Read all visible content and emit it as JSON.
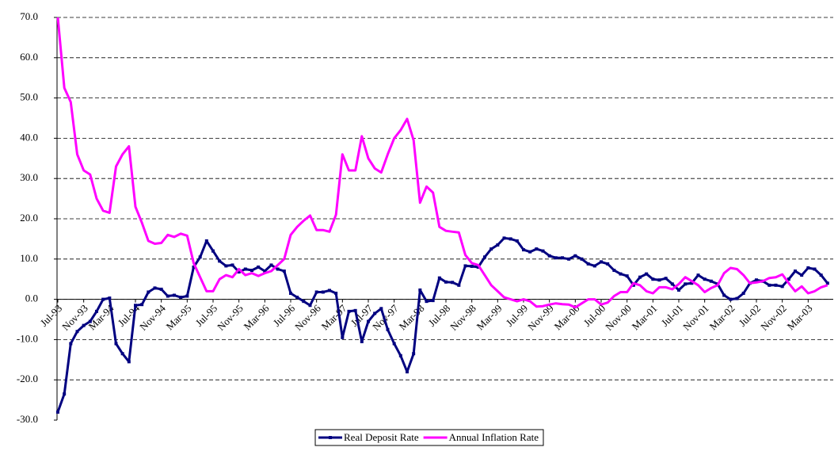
{
  "chart_data": {
    "type": "line",
    "categories": [
      "Jul-93",
      null,
      null,
      null,
      "Nov-93",
      null,
      null,
      null,
      "Mar-94",
      null,
      null,
      null,
      "Jul-94",
      null,
      null,
      null,
      "Nov-94",
      null,
      null,
      null,
      "Mar-95",
      null,
      null,
      null,
      "Jul-95",
      null,
      null,
      null,
      "Nov-95",
      null,
      null,
      null,
      "Mar-96",
      null,
      null,
      null,
      "Jul-96",
      null,
      null,
      null,
      "Nov-96",
      null,
      null,
      null,
      "Mar-97",
      null,
      null,
      null,
      "Jul-97",
      null,
      null,
      null,
      "Nov-97",
      null,
      null,
      null,
      "Mar-98",
      null,
      null,
      null,
      "Jul-98",
      null,
      null,
      null,
      "Nov-98",
      null,
      null,
      null,
      "Mar-99",
      null,
      null,
      null,
      "Jul-99",
      null,
      null,
      null,
      "Nov-99",
      null,
      null,
      null,
      "Mar-00",
      null,
      null,
      null,
      "Jul-00",
      null,
      null,
      null,
      "Nov-00",
      null,
      null,
      null,
      "Mar-01",
      null,
      null,
      null,
      "Jul-01",
      null,
      null,
      null,
      "Nov-01",
      null,
      null,
      null,
      "Mar-02",
      null,
      null,
      null,
      "Jul-02",
      null,
      null,
      null,
      "Nov-02",
      null,
      null,
      null,
      "Mar-03",
      null,
      null,
      null
    ],
    "series": [
      {
        "name": "Real Deposit Rate",
        "color": "#000080",
        "markers": true,
        "values": [
          -28,
          -23.5,
          -11,
          -8,
          -6.5,
          -5.5,
          -3,
          0,
          0.3,
          -11,
          -13.5,
          -15.5,
          -1.5,
          -1.3,
          1.8,
          2.8,
          2.5,
          0.8,
          1,
          0.5,
          0.8,
          8,
          10.5,
          14.5,
          12,
          9.5,
          8.3,
          8.5,
          6.8,
          7.5,
          7.2,
          8,
          7,
          8.5,
          7.5,
          7,
          1.5,
          0.5,
          -0.5,
          -1.5,
          1.8,
          1.8,
          2.2,
          1.5,
          -9.5,
          -3,
          -2.8,
          -10.5,
          -5.5,
          -3.5,
          -2.3,
          -7.5,
          -11,
          -14,
          -18,
          -13.5,
          2.3,
          -0.5,
          -0.3,
          5.3,
          4.3,
          4.2,
          3.5,
          8.3,
          8.2,
          8,
          10.5,
          12.5,
          13.5,
          15.2,
          15,
          14.5,
          12.3,
          11.8,
          12.5,
          12,
          10.8,
          10.3,
          10.3,
          10,
          10.8,
          10,
          8.8,
          8.3,
          9.3,
          8.8,
          7.2,
          6.3,
          5.8,
          3.5,
          5.5,
          6.3,
          5,
          4.8,
          5.2,
          3.8,
          2.3,
          3.8,
          4,
          6,
          5,
          4.5,
          3.8,
          1,
          0,
          0.2,
          1.5,
          4,
          4.8,
          4.5,
          3.5,
          3.5,
          3.2,
          5,
          7,
          6,
          7.8,
          7.5,
          6,
          4
        ]
      },
      {
        "name": "Annual Inflation Rate",
        "color": "#ff00ff",
        "markers": false,
        "values": [
          70,
          52.5,
          49,
          36,
          32,
          31,
          25,
          22,
          21.5,
          33,
          36,
          38,
          23,
          19,
          14.5,
          13.8,
          14,
          16,
          15.5,
          16.3,
          15.8,
          9,
          5.5,
          2,
          2,
          5,
          6,
          5.5,
          7.5,
          6,
          6.5,
          5.8,
          6.5,
          7,
          8.5,
          10,
          16,
          18,
          19.5,
          20.8,
          17.2,
          17.2,
          16.8,
          21,
          36,
          32,
          32,
          40.5,
          35,
          32.5,
          31.5,
          36,
          40,
          42,
          44.8,
          39.5,
          24,
          28,
          26.5,
          18,
          17,
          16.8,
          16.6,
          11,
          9,
          8.5,
          6,
          3.5,
          2,
          0.5,
          0,
          -0.5,
          0,
          -0.5,
          -1.8,
          -1.7,
          -1.3,
          -1,
          -1.2,
          -1.3,
          -2,
          -1,
          0,
          0,
          -1.3,
          -0.8,
          0.8,
          1.8,
          1.8,
          4,
          3.5,
          2,
          1.5,
          3,
          3,
          2.5,
          3.8,
          5.5,
          4.5,
          3.5,
          1.8,
          2.8,
          3.5,
          6.5,
          7.8,
          7.5,
          6,
          4,
          4.2,
          4.5,
          5.3,
          5.5,
          6.2,
          4,
          2,
          3.2,
          1.5,
          2,
          3,
          3.5
        ]
      }
    ],
    "ylim": [
      -30,
      70
    ],
    "yticks": [
      {
        "value": -30,
        "label": "-30.0"
      },
      {
        "value": -20,
        "label": "-20.0"
      },
      {
        "value": -10,
        "label": "-10.0"
      },
      {
        "value": 0,
        "label": "0.0"
      },
      {
        "value": 10,
        "label": "10.0"
      },
      {
        "value": 20,
        "label": "20.0"
      },
      {
        "value": 30,
        "label": "30.0"
      },
      {
        "value": 40,
        "label": "40.0"
      },
      {
        "value": 50,
        "label": "50.0"
      },
      {
        "value": 60,
        "label": "60.0"
      },
      {
        "value": 70,
        "label": "70.0"
      }
    ],
    "grid": true,
    "legend": "bottom"
  }
}
